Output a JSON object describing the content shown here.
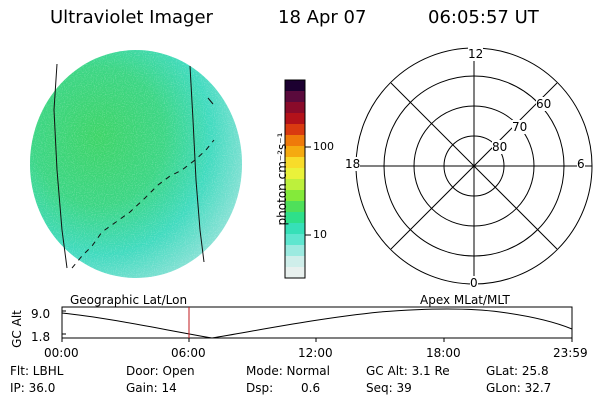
{
  "header": {
    "instrument": "Ultraviolet Imager",
    "date": "18 Apr 07",
    "time": "06:05:57 UT"
  },
  "colorbar": {
    "unit_label": "photon cm⁻²s⁻¹",
    "ticks": [
      "100",
      "10"
    ],
    "colors": [
      "#1c0030",
      "#5a0a3c",
      "#8a0b2a",
      "#b3121a",
      "#d93a10",
      "#ef7a0a",
      "#f5aa10",
      "#f8dc2a",
      "#eaf23a",
      "#bdf03c",
      "#84ea3a",
      "#4ee05a",
      "#2ee08a",
      "#36e0b8",
      "#5ee6cf",
      "#9ceae0",
      "#cfeeea",
      "#e8f0ee"
    ]
  },
  "polar_grid": {
    "mlt_labels": {
      "top": "12",
      "left": "18",
      "right": "6",
      "bottom": "0"
    },
    "lat_labels": [
      "60",
      "70",
      "80"
    ]
  },
  "timeline": {
    "ylabel": "GC Alt",
    "left_title": "Geographic Lat/Lon",
    "right_title": "Apex MLat/MLT",
    "y_ticks": [
      "9.0",
      "1.8"
    ],
    "x_ticks": [
      "00:00",
      "06:00",
      "12:00",
      "18:00",
      "23:59"
    ],
    "current_marker_time": "06:05:57"
  },
  "footer": {
    "filter": "Flt: LBHL",
    "ip": "IP: 36.0",
    "door": "Door: Open",
    "gain": "Gain: 14",
    "mode": "Mode: Normal",
    "dsp_label": "Dsp:",
    "dsp_value": "0.6",
    "gc_alt": "GC Alt: 3.1 Re",
    "seq": "Seq: 39",
    "glat": "GLat: 25.8",
    "glon": "GLon: 32.7"
  },
  "colors": {
    "green": "#39d24a",
    "cyan": "#3fd9c8",
    "pale": "#d7ecea",
    "marker": "#c0181e"
  }
}
